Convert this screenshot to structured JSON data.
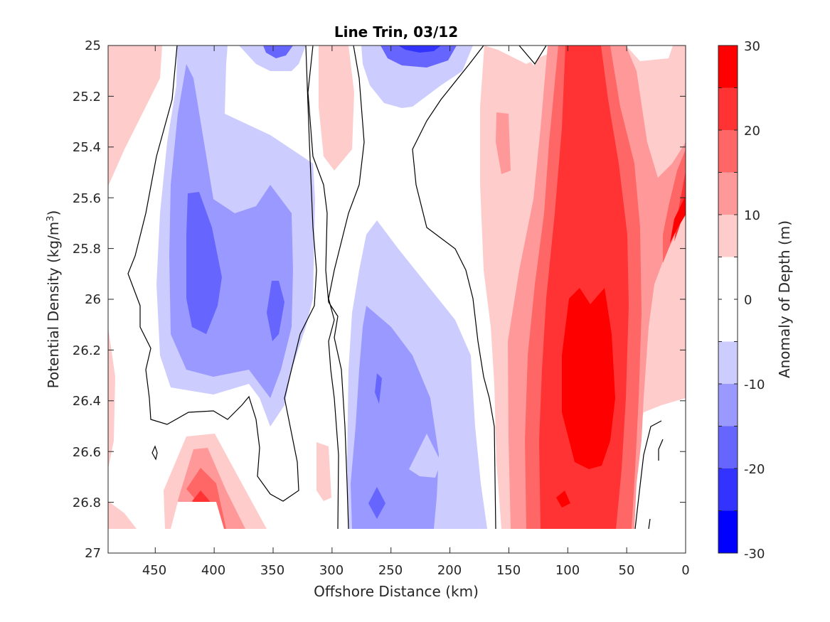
{
  "chart_data": {
    "type": "contourf",
    "title": "Line Trin, 03/12",
    "xlabel": "Offshore Distance (km)",
    "ylabel_main": "Potential Density (kg/m",
    "ylabel_sup": "3",
    "ylabel_close": ")",
    "xlim": [
      490,
      0
    ],
    "ylim": [
      25,
      27
    ],
    "xticks": [
      "450",
      "400",
      "350",
      "300",
      "250",
      "200",
      "150",
      "100",
      "50",
      "0"
    ],
    "yticks": [
      "25",
      "25.2",
      "25.4",
      "25.6",
      "25.8",
      "26",
      "26.2",
      "26.4",
      "26.6",
      "26.8",
      "27"
    ],
    "colorbar": {
      "label": "Anomaly of Depth (m)",
      "range": [
        -30,
        30
      ],
      "tick_labels": [
        "30",
        "20",
        "10",
        "0",
        "-10",
        "-20",
        "-30"
      ],
      "levels": [
        -30,
        -25,
        -20,
        -15,
        -10,
        -5,
        5,
        10,
        15,
        20,
        25,
        30
      ],
      "colors": [
        "#0000ff",
        "#3333ff",
        "#6666ff",
        "#9999ff",
        "#ccccff",
        "#ffffff",
        "#ffcccc",
        "#ff9999",
        "#ff6666",
        "#ff3333",
        "#ff0000"
      ]
    },
    "data_extent": {
      "x": [
        12,
        490
      ],
      "y": [
        25,
        26.9
      ]
    },
    "features": [
      {
        "sign": "negative",
        "x_center": 400,
        "y_range": [
          25,
          26.45
        ],
        "min_anomaly": -20
      },
      {
        "sign": "negative",
        "x_center": 350,
        "y_range": [
          25,
          26.6
        ],
        "min_anomaly": -25
      },
      {
        "sign": "negative",
        "x_center": 225,
        "y_range": [
          25,
          26.9
        ],
        "min_anomaly": -30
      },
      {
        "sign": "positive",
        "x_center": 85,
        "y_range": [
          25,
          26.9
        ],
        "max_anomaly": 30
      },
      {
        "sign": "positive",
        "x_center": 410,
        "y_range": [
          26.55,
          26.9
        ],
        "max_anomaly": 20
      },
      {
        "sign": "positive",
        "x_center": 470,
        "y_range": [
          25,
          25.6
        ],
        "max_anomaly": 10
      }
    ]
  }
}
